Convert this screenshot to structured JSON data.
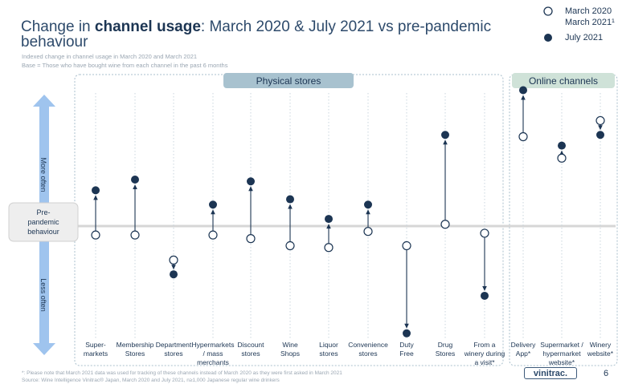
{
  "header": {
    "title_pre": "Change in ",
    "title_bold": "channel usage",
    "title_post": ": March 2020 & July 2021 vs pre-pandemic",
    "title_line2": "behaviour",
    "subtitle1": "Indexed change in channel usage in March 2020 and March 2021",
    "subtitle2": "Base = Those who have bought wine from each channel in the past 6 months"
  },
  "legend": {
    "march_label_1": "March 2020",
    "march_label_2": "March 2021¹",
    "july_label": "July 2021"
  },
  "footer": {
    "note": "*: Please note that March 2021 data was used for tracking of these channels instead of March 2020 as they were first asked in March 2021",
    "source": "Source: Wine Intelligence Vinitrac® Japan, March 2020 and July 2021, n≥1,000 Japanese regular wine drinkers",
    "logo": "vinitrac.",
    "page": "6"
  },
  "chart_data": {
    "type": "scatter",
    "title": "Change in channel usage: March 2020 & July 2021 vs pre-pandemic behaviour",
    "axis_top_label": "More often",
    "axis_bottom_label": "Less often",
    "baseline_label": [
      "Pre-",
      "pandemic",
      "behaviour"
    ],
    "baseline_value": 0,
    "ylim": [
      -10,
      10
    ],
    "groups": [
      {
        "name": "Physical stores",
        "from": 0,
        "to": 10
      },
      {
        "name": "Online channels",
        "from": 11,
        "to": 13
      }
    ],
    "categories": [
      [
        "Super-",
        "markets"
      ],
      [
        "Membership",
        "Stores"
      ],
      [
        "Department",
        "stores"
      ],
      [
        "Hypermarkets",
        "/ mass",
        "merchants"
      ],
      [
        "Discount",
        "stores"
      ],
      [
        "Wine",
        "Shops"
      ],
      [
        "Liquor",
        "stores"
      ],
      [
        "Convenience",
        "stores"
      ],
      [
        "Duty",
        "Free"
      ],
      [
        "Drug",
        "Stores"
      ],
      [
        "From a",
        "winery during",
        "a visit*"
      ],
      [
        "Delivery",
        "App*"
      ],
      [
        "Supermarket /",
        "hypermarket",
        "website*"
      ],
      [
        "Winery",
        "website*"
      ]
    ],
    "series": [
      {
        "name": "March 2020 / March 2021",
        "marker": "open",
        "values": [
          -0.5,
          -0.5,
          -1.9,
          -0.5,
          -0.7,
          -1.1,
          -1.2,
          -0.3,
          -1.1,
          0.1,
          -0.4,
          5.0,
          3.8,
          5.9
        ]
      },
      {
        "name": "July 2021",
        "marker": "filled",
        "values": [
          2.0,
          2.6,
          -2.7,
          1.2,
          2.5,
          1.5,
          0.4,
          1.2,
          -6.0,
          5.1,
          -3.9,
          7.6,
          4.5,
          5.1
        ]
      }
    ]
  }
}
